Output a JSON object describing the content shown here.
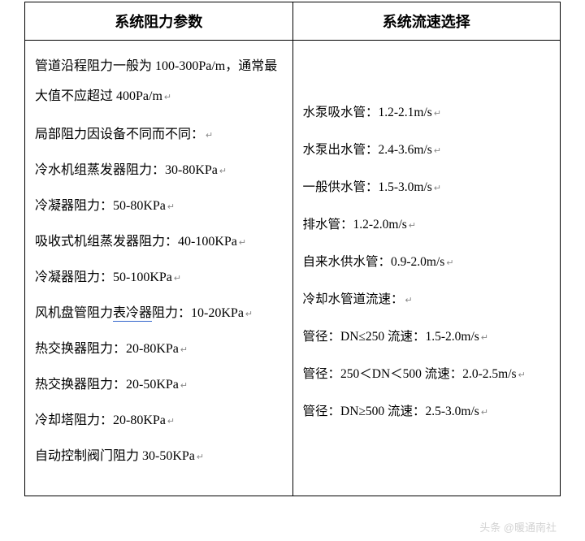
{
  "table": {
    "header_left": "系统阻力参数",
    "header_right": "系统流速选择",
    "left_column": {
      "intro": "管道沿程阻力一般为 100-300Pa/m，通常最大值不应超过 400Pa/m",
      "subheading": "局部阻力因设备不同而不同：",
      "items": [
        "冷水机组蒸发器阻力：30-80KPa",
        "冷凝器阻力：50-80KPa",
        "吸收式机组蒸发器阻力：40-100KPa",
        "冷凝器阻力：50-100KPa",
        "风机盘管阻力表冷器阻力：10-20KPa",
        "热交换器阻力：20-80KPa",
        "热交换器阻力：20-50KPa",
        "冷却塔阻力：20-80KPa",
        "自动控制阀门阻力 30-50KPa"
      ],
      "underline_item_index": 4,
      "underline_text": "表冷器"
    },
    "right_column": {
      "items": [
        "水泵吸水管：1.2-2.1m/s",
        "水泵出水管：2.4-3.6m/s",
        "一般供水管：1.5-3.0m/s",
        "排水管：1.2-2.0m/s",
        "自来水供水管：0.9-2.0m/s",
        "冷却水管道流速：",
        "管径：DN≤250 流速：1.5-2.0m/s",
        "管径：250＜DN＜500 流速：2.0-2.5m/s",
        "管径：DN≥500 流速：2.5-3.0m/s"
      ]
    }
  },
  "watermark": "头条 @暖通南社",
  "colors": {
    "border": "#000000",
    "text": "#000000",
    "underline": "#3366cc",
    "return_mark": "#888888",
    "watermark": "rgba(200,200,200,0.8)",
    "background": "#ffffff"
  },
  "typography": {
    "header_fontsize": 18,
    "body_fontsize": 16,
    "right_fontsize": 15.5,
    "font_family": "SimSun"
  },
  "return_mark": "↵"
}
